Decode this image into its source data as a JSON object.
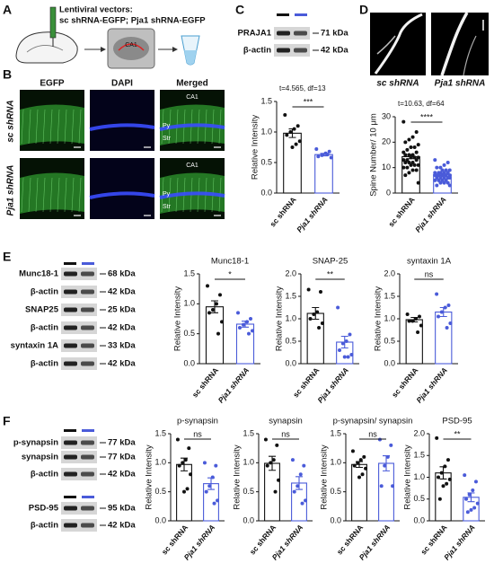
{
  "panel_labels": [
    "A",
    "B",
    "C",
    "D",
    "E",
    "F"
  ],
  "panel_a": {
    "title": "Lentiviral vectors:",
    "constructs": "sc shRNA-EGFP; Pja1 shRNA-EGFP",
    "region": "CA1"
  },
  "panel_b": {
    "columns": [
      "EGFP",
      "DAPI",
      "Merged"
    ],
    "rows": [
      "sc shRNA",
      "Pja1 shRNA"
    ],
    "merged_labels": [
      "CA1",
      "Py",
      "Str"
    ]
  },
  "panel_d": {
    "images": [
      "sc shRNA",
      "Pja1 shRNA"
    ]
  },
  "blots": {
    "c": [
      {
        "label": "PRAJA1",
        "size": "71 kDa"
      },
      {
        "label": "β-actin",
        "size": "42 kDa"
      }
    ],
    "e": [
      {
        "label": "Munc18-1",
        "size": "68 kDa"
      },
      {
        "label": "β-actin",
        "size": "42 kDa"
      },
      {
        "label": "SNAP25",
        "size": "25 kDa"
      },
      {
        "label": "β-actin",
        "size": "42 kDa"
      },
      {
        "label": "syntaxin 1A",
        "size": "33 kDa"
      },
      {
        "label": "β-actin",
        "size": "42 kDa"
      }
    ],
    "f1": [
      {
        "label": "p-synapsin",
        "size": "77 kDa"
      },
      {
        "label": "synapsin",
        "size": "77 kDa"
      },
      {
        "label": "β-actin",
        "size": "42 kDa"
      }
    ],
    "f2": [
      {
        "label": "PSD-95",
        "size": "95 kDa"
      },
      {
        "label": "β-actin",
        "size": "42 kDa"
      }
    ]
  },
  "chart_data": [
    {
      "type": "bar",
      "ylabel": "Relative Intensity",
      "test": "t=4.565, df=13",
      "stat": "***",
      "categories": [
        "sc shRNA",
        "Pja1 shRNA"
      ],
      "colors": [
        "#111111",
        "#4a5bd9"
      ],
      "values": [
        0.98,
        0.63
      ],
      "errors": [
        0.07,
        0.02
      ],
      "points": [
        [
          1.28,
          1.1,
          1.05,
          1.0,
          0.95,
          0.85,
          0.8,
          0.75
        ],
        [
          0.72,
          0.68,
          0.65,
          0.62,
          0.6,
          0.58,
          0.63
        ]
      ],
      "ylim": [
        0,
        1.5
      ],
      "yticks": [
        {
          "value": 0,
          "label": "0.0"
        },
        0.5,
        {
          "value": 1,
          "label": "1.0"
        },
        1.5
      ]
    },
    {
      "type": "bar",
      "ylabel": "Spine Number/ 10 μm",
      "test": "t=10.63, df=64",
      "stat": "****",
      "categories": [
        "sc shRNA",
        "Pja1 shRNA"
      ],
      "colors": [
        "#111111",
        "#4a5bd9"
      ],
      "values": [
        14.3,
        7.3
      ],
      "errors": [
        0.8,
        0.4
      ],
      "points": [
        [
          28,
          24,
          22,
          21,
          20,
          19,
          18,
          18,
          17,
          16,
          16,
          15,
          15,
          15,
          14,
          14,
          14,
          13,
          13,
          13,
          12,
          12,
          12,
          11,
          11,
          11,
          10,
          10,
          9,
          9,
          8,
          7,
          4
        ],
        [
          13,
          12,
          11,
          10,
          10,
          9,
          9,
          9,
          8,
          8,
          8,
          8,
          8,
          7,
          7,
          7,
          7,
          7,
          7,
          6,
          6,
          6,
          6,
          6,
          5,
          5,
          5,
          5,
          4,
          4,
          4,
          3,
          3
        ]
      ],
      "ylim": [
        0,
        30
      ],
      "yticks": [
        0,
        10,
        20,
        30
      ]
    },
    {
      "type": "bar",
      "title": "Munc18-1",
      "ylabel": "Relative Intensity",
      "stat": "*",
      "categories": [
        "sc shRNA",
        "Pja1 shRNA"
      ],
      "colors": [
        "#111111",
        "#4a5bd9"
      ],
      "values": [
        0.95,
        0.66
      ],
      "errors": [
        0.1,
        0.05
      ],
      "points": [
        [
          1.3,
          1.15,
          1.0,
          0.9,
          0.85,
          0.7,
          0.5
        ],
        [
          0.85,
          0.75,
          0.7,
          0.65,
          0.6,
          0.55,
          0.5
        ]
      ],
      "ylim": [
        0,
        1.5
      ],
      "yticks": [
        {
          "value": 0,
          "label": "0.0"
        },
        0.5,
        {
          "value": 1,
          "label": "1.0"
        },
        1.5
      ]
    },
    {
      "type": "bar",
      "title": "SNAP-25",
      "ylabel": "Relative Intensity",
      "stat": "**",
      "categories": [
        "sc shRNA",
        "Pja1 shRNA"
      ],
      "colors": [
        "#111111",
        "#4a5bd9"
      ],
      "values": [
        1.12,
        0.48
      ],
      "errors": [
        0.13,
        0.13
      ],
      "points": [
        [
          1.65,
          1.6,
          1.15,
          1.1,
          1.0,
          0.9,
          0.8
        ],
        [
          1.25,
          0.65,
          0.5,
          0.45,
          0.3,
          0.2,
          0.15,
          0.15
        ]
      ],
      "ylim": [
        0,
        2
      ],
      "yticks": [
        {
          "value": 0,
          "label": "0.0"
        },
        0.5,
        {
          "value": 1,
          "label": "1.0"
        },
        1.5,
        {
          "value": 2,
          "label": "2.0"
        }
      ]
    },
    {
      "type": "bar",
      "title": "syntaxin 1A",
      "ylabel": "Relative Intensity",
      "stat": "ns",
      "categories": [
        "sc shRNA",
        "Pja1 shRNA"
      ],
      "colors": [
        "#111111",
        "#4a5bd9"
      ],
      "values": [
        0.98,
        1.15
      ],
      "errors": [
        0.05,
        0.1
      ],
      "points": [
        [
          1.1,
          1.05,
          1.0,
          0.95,
          0.95,
          0.85,
          0.7
        ],
        [
          1.55,
          1.3,
          1.25,
          1.15,
          1.05,
          0.9,
          0.8
        ]
      ],
      "ylim": [
        0,
        2
      ],
      "yticks": [
        {
          "value": 0,
          "label": "0.0"
        },
        0.5,
        {
          "value": 1,
          "label": "1.0"
        },
        1.5,
        {
          "value": 2,
          "label": "2.0"
        }
      ]
    },
    {
      "type": "bar",
      "title": "p-synapsin",
      "ylabel": "Relative Intensity",
      "stat": "ns",
      "categories": [
        "sc shRNA",
        "Pja1 shRNA"
      ],
      "colors": [
        "#111111",
        "#4a5bd9"
      ],
      "values": [
        0.97,
        0.64
      ],
      "errors": [
        0.11,
        0.1
      ],
      "points": [
        [
          1.4,
          1.25,
          1.05,
          1.0,
          0.95,
          0.8,
          0.55,
          0.5
        ],
        [
          1.0,
          0.95,
          0.75,
          0.6,
          0.5,
          0.35,
          0.3
        ]
      ],
      "ylim": [
        0,
        1.5
      ],
      "yticks": [
        {
          "value": 0,
          "label": "0.0"
        },
        0.5,
        {
          "value": 1,
          "label": "1.0"
        },
        1.5
      ]
    },
    {
      "type": "bar",
      "title": "synapsin",
      "ylabel": "Relative Intensity",
      "stat": "ns",
      "categories": [
        "sc shRNA",
        "Pja1 shRNA"
      ],
      "colors": [
        "#111111",
        "#4a5bd9"
      ],
      "values": [
        0.99,
        0.65
      ],
      "errors": [
        0.12,
        0.11
      ],
      "points": [
        [
          1.4,
          1.3,
          1.05,
          1.0,
          0.95,
          0.7,
          0.5
        ],
        [
          1.05,
          0.95,
          0.8,
          0.6,
          0.5,
          0.35,
          0.3
        ]
      ],
      "ylim": [
        0,
        1.5
      ],
      "yticks": [
        {
          "value": 0,
          "label": "0.0"
        },
        0.5,
        {
          "value": 1,
          "label": "1.0"
        },
        1.5
      ]
    },
    {
      "type": "bar",
      "title": "p-synapsin/ synapsin",
      "ylabel": "Relative Intensity",
      "stat": "ns",
      "categories": [
        "sc shRNA",
        "Pja1 shRNA"
      ],
      "colors": [
        "#111111",
        "#4a5bd9"
      ],
      "values": [
        0.97,
        0.99
      ],
      "errors": [
        0.05,
        0.13
      ],
      "points": [
        [
          1.2,
          1.1,
          1.05,
          1.0,
          0.95,
          0.9,
          0.8,
          0.75
        ],
        [
          1.4,
          1.3,
          1.1,
          0.95,
          0.6,
          0.6
        ]
      ],
      "ylim": [
        0,
        1.5
      ],
      "yticks": [
        {
          "value": 0,
          "label": "0.0"
        },
        0.5,
        {
          "value": 1,
          "label": "1.0"
        },
        1.5
      ]
    },
    {
      "type": "bar",
      "title": "PSD-95",
      "ylabel": "Relative Intensity",
      "stat": "**",
      "categories": [
        "sc shRNA",
        "Pja1 shRNA"
      ],
      "colors": [
        "#111111",
        "#4a5bd9"
      ],
      "values": [
        1.1,
        0.54
      ],
      "errors": [
        0.14,
        0.1
      ],
      "points": [
        [
          1.9,
          1.4,
          1.25,
          1.1,
          1.0,
          0.95,
          0.85,
          0.8,
          0.5
        ],
        [
          1.05,
          0.9,
          0.7,
          0.6,
          0.5,
          0.4,
          0.3,
          0.25,
          0.2
        ]
      ],
      "ylim": [
        0,
        2
      ],
      "yticks": [
        {
          "value": 0,
          "label": "0.0"
        },
        0.5,
        {
          "value": 1,
          "label": "1.0"
        },
        1.5,
        {
          "value": 2,
          "label": "2.0"
        }
      ]
    }
  ]
}
